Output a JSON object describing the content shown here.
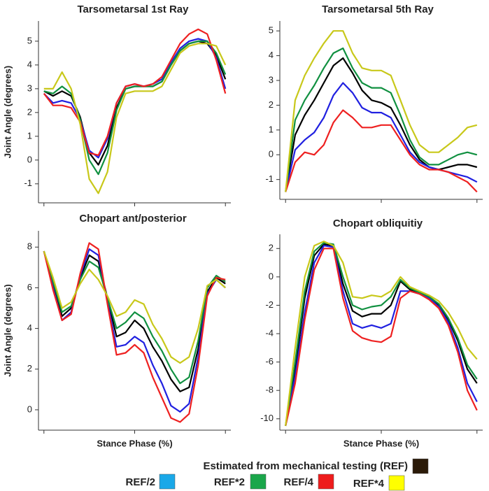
{
  "chart_data": [
    {
      "type": "line",
      "title": "Tarsometarsal 1st Ray",
      "ylabel": "Joint Angle (degrees)",
      "x": [
        0,
        5,
        10,
        15,
        20,
        25,
        30,
        35,
        40,
        45,
        50,
        55,
        60,
        65,
        70,
        75,
        80,
        85,
        90,
        95,
        100
      ],
      "xlim": [
        -3,
        103
      ],
      "xticks": [
        0,
        50,
        100
      ],
      "ylim": [
        -1.8,
        5.85
      ],
      "yticks": [
        -1,
        0,
        1,
        2,
        3,
        4,
        5
      ],
      "series": [
        {
          "color": "#000000",
          "values": [
            2.9,
            2.7,
            2.9,
            2.7,
            1.8,
            0.3,
            -0.2,
            0.6,
            2.2,
            3.0,
            3.1,
            3.1,
            3.1,
            3.3,
            4.0,
            4.6,
            4.9,
            5.0,
            4.9,
            4.4,
            3.4
          ]
        },
        {
          "color": "#2020e0",
          "values": [
            2.8,
            2.4,
            2.5,
            2.4,
            1.7,
            0.4,
            0.1,
            0.9,
            2.4,
            3.1,
            3.2,
            3.1,
            3.2,
            3.4,
            4.1,
            4.7,
            5.0,
            5.1,
            5.0,
            4.3,
            3.0
          ]
        },
        {
          "color": "#109040",
          "values": [
            2.9,
            2.8,
            3.1,
            2.8,
            1.7,
            0.0,
            -0.6,
            0.3,
            2.1,
            3.0,
            3.1,
            3.1,
            3.1,
            3.3,
            4.0,
            4.6,
            4.9,
            5.0,
            5.0,
            4.5,
            3.6
          ]
        },
        {
          "color": "#ee2020",
          "values": [
            2.8,
            2.3,
            2.3,
            2.2,
            1.6,
            0.3,
            0.2,
            1.0,
            2.4,
            3.1,
            3.2,
            3.1,
            3.2,
            3.5,
            4.2,
            4.9,
            5.3,
            5.5,
            5.3,
            4.2,
            2.8
          ]
        },
        {
          "color": "#c8c81a",
          "values": [
            3.0,
            3.0,
            3.7,
            3.0,
            1.5,
            -0.8,
            -1.4,
            -0.5,
            1.8,
            2.8,
            2.9,
            2.9,
            2.9,
            3.1,
            3.8,
            4.5,
            4.8,
            4.9,
            4.9,
            4.8,
            4.0
          ]
        }
      ]
    },
    {
      "type": "line",
      "title": "Tarsometarsal 5th Ray",
      "x": [
        0,
        5,
        10,
        15,
        20,
        25,
        30,
        35,
        40,
        45,
        50,
        55,
        60,
        65,
        70,
        75,
        80,
        85,
        90,
        95,
        100
      ],
      "xlim": [
        -3,
        103
      ],
      "xticks": [
        0,
        50,
        100
      ],
      "ylim": [
        -1.8,
        5.4
      ],
      "yticks": [
        -1,
        0,
        1,
        2,
        3,
        4,
        5
      ],
      "series": [
        {
          "color": "#000000",
          "values": [
            -1.5,
            0.8,
            1.6,
            2.2,
            2.9,
            3.6,
            3.9,
            3.3,
            2.6,
            2.2,
            2.1,
            1.9,
            1.2,
            0.4,
            -0.2,
            -0.5,
            -0.6,
            -0.5,
            -0.4,
            -0.4,
            -0.5
          ]
        },
        {
          "color": "#2020e0",
          "values": [
            -1.5,
            0.2,
            0.6,
            0.9,
            1.5,
            2.4,
            2.9,
            2.5,
            1.9,
            1.7,
            1.7,
            1.5,
            0.8,
            0.1,
            -0.3,
            -0.5,
            -0.6,
            -0.7,
            -0.8,
            -0.9,
            -1.1
          ]
        },
        {
          "color": "#109040",
          "values": [
            -1.5,
            1.4,
            2.2,
            2.8,
            3.5,
            4.1,
            4.3,
            3.5,
            2.9,
            2.7,
            2.7,
            2.5,
            1.6,
            0.6,
            -0.1,
            -0.4,
            -0.4,
            -0.2,
            0.0,
            0.1,
            0.0
          ]
        },
        {
          "color": "#ee2020",
          "values": [
            -1.5,
            -0.3,
            0.1,
            0.0,
            0.4,
            1.3,
            1.8,
            1.5,
            1.1,
            1.1,
            1.2,
            1.2,
            0.6,
            0.0,
            -0.4,
            -0.6,
            -0.6,
            -0.7,
            -0.9,
            -1.1,
            -1.5
          ]
        },
        {
          "color": "#c8c81a",
          "values": [
            -1.5,
            2.2,
            3.2,
            3.9,
            4.5,
            5.0,
            5.0,
            4.1,
            3.5,
            3.4,
            3.4,
            3.2,
            2.2,
            1.2,
            0.4,
            0.1,
            0.1,
            0.4,
            0.7,
            1.1,
            1.2
          ]
        }
      ]
    },
    {
      "type": "line",
      "title": "Chopart ant/posterior",
      "ylabel": "Joint Angle (degrees)",
      "xlabel": "Stance Phase (%)",
      "x": [
        0,
        5,
        10,
        15,
        20,
        25,
        30,
        35,
        40,
        45,
        50,
        55,
        60,
        65,
        70,
        75,
        80,
        85,
        90,
        95,
        100
      ],
      "xlim": [
        -3,
        103
      ],
      "xticks": [
        0,
        50,
        100
      ],
      "ylim": [
        -1,
        8.8
      ],
      "yticks": [
        0,
        2,
        4,
        6,
        8
      ],
      "series": [
        {
          "color": "#000000",
          "values": [
            7.8,
            6.2,
            4.6,
            5.0,
            6.5,
            7.6,
            7.3,
            5.5,
            3.6,
            3.8,
            4.4,
            4.0,
            3.1,
            2.4,
            1.5,
            0.9,
            1.1,
            3.0,
            5.8,
            6.5,
            6.2
          ]
        },
        {
          "color": "#2020e0",
          "values": [
            7.8,
            6.0,
            4.4,
            4.8,
            6.6,
            7.9,
            7.6,
            5.3,
            3.1,
            3.2,
            3.6,
            3.3,
            2.2,
            1.3,
            0.2,
            -0.1,
            0.3,
            2.6,
            5.7,
            6.4,
            6.0
          ]
        },
        {
          "color": "#109040",
          "values": [
            7.8,
            6.3,
            4.8,
            5.1,
            6.4,
            7.3,
            7.0,
            5.5,
            4.0,
            4.3,
            4.8,
            4.5,
            3.6,
            2.9,
            2.0,
            1.3,
            1.6,
            3.4,
            6.0,
            6.6,
            6.3
          ]
        },
        {
          "color": "#ee2020",
          "values": [
            7.8,
            5.9,
            4.4,
            4.7,
            6.7,
            8.2,
            7.9,
            5.2,
            2.7,
            2.8,
            3.2,
            2.8,
            1.6,
            0.6,
            -0.4,
            -0.6,
            -0.2,
            2.2,
            5.6,
            6.5,
            6.4
          ]
        },
        {
          "color": "#c8c81a",
          "values": [
            7.8,
            6.5,
            5.0,
            5.3,
            6.2,
            6.9,
            6.4,
            5.6,
            4.6,
            4.8,
            5.4,
            5.2,
            4.2,
            3.5,
            2.6,
            2.3,
            2.6,
            4.0,
            6.1,
            6.4,
            6.0
          ]
        }
      ]
    },
    {
      "type": "line",
      "title": "Chopart obliquitiy",
      "xlabel": "Stance Phase (%)",
      "x": [
        0,
        5,
        10,
        15,
        20,
        25,
        30,
        35,
        40,
        45,
        50,
        55,
        60,
        65,
        70,
        75,
        80,
        85,
        90,
        95,
        100
      ],
      "xlim": [
        -3,
        103
      ],
      "xticks": [
        0,
        50,
        100
      ],
      "ylim": [
        -10.8,
        3
      ],
      "yticks": [
        -10,
        -8,
        -6,
        -4,
        -2,
        0,
        2
      ],
      "series": [
        {
          "color": "#000000",
          "values": [
            -10.5,
            -6.5,
            -1.5,
            1.5,
            2.3,
            2.2,
            -0.5,
            -2.4,
            -2.8,
            -2.6,
            -2.6,
            -2.0,
            -0.3,
            -0.9,
            -1.2,
            -1.5,
            -2.0,
            -3.0,
            -4.5,
            -6.5,
            -7.5
          ]
        },
        {
          "color": "#2020e0",
          "values": [
            -10.5,
            -7.0,
            -2.5,
            1.0,
            2.2,
            2.1,
            -1.0,
            -3.3,
            -3.6,
            -3.4,
            -3.6,
            -3.3,
            -1.0,
            -1.0,
            -1.2,
            -1.5,
            -2.1,
            -3.2,
            -5.0,
            -7.5,
            -8.8
          ]
        },
        {
          "color": "#109040",
          "values": [
            -10.5,
            -6.0,
            -1.0,
            1.8,
            2.4,
            2.3,
            0.0,
            -2.0,
            -2.3,
            -2.1,
            -2.0,
            -1.4,
            -0.2,
            -0.8,
            -1.1,
            -1.4,
            -1.9,
            -2.9,
            -4.3,
            -6.2,
            -7.2
          ]
        },
        {
          "color": "#ee2020",
          "values": [
            -10.5,
            -7.5,
            -3.0,
            0.5,
            2.0,
            2.0,
            -1.5,
            -3.8,
            -4.3,
            -4.5,
            -4.6,
            -4.2,
            -1.5,
            -1.0,
            -1.2,
            -1.6,
            -2.2,
            -3.4,
            -5.3,
            -8.0,
            -9.4
          ]
        },
        {
          "color": "#c8c81a",
          "values": [
            -10.5,
            -5.0,
            0.0,
            2.2,
            2.5,
            2.2,
            1.0,
            -1.4,
            -1.5,
            -1.3,
            -1.4,
            -1.0,
            0.0,
            -0.7,
            -1.0,
            -1.3,
            -1.7,
            -2.5,
            -3.6,
            -5.0,
            -5.8
          ]
        }
      ]
    }
  ],
  "legend": [
    {
      "label": "Estimated from mechanical testing (REF)",
      "color": "#2b1a08"
    },
    {
      "label": "REF/2",
      "color": "#1aa8e8"
    },
    {
      "label": "REF*2",
      "color": "#1aa64a"
    },
    {
      "label": "REF/4",
      "color": "#ee1c1c"
    },
    {
      "label": "REF*4",
      "color": "#ffff00"
    }
  ]
}
